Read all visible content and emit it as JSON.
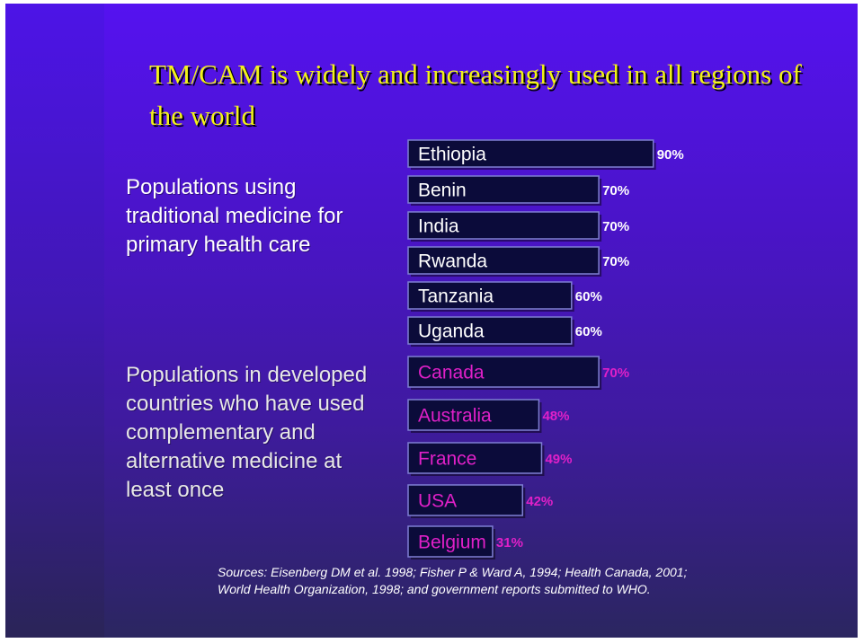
{
  "title": "TM/CAM is widely and increasingly used in all regions of the world",
  "groups": {
    "traditional_label": "Populations using traditional medicine for primary health care",
    "developed_label": "Populations in developed countries who have used complementary and alternative medicine at least once"
  },
  "chart_data": {
    "type": "bar",
    "orientation": "horizontal",
    "title": "TM/CAM is widely and increasingly used in all regions of the world",
    "xlim": [
      0,
      100
    ],
    "unit": "%",
    "groups": [
      {
        "name": "Populations using traditional medicine for primary health care",
        "categories": [
          "Ethiopia",
          "Benin",
          "India",
          "Rwanda",
          "Tanzania",
          "Uganda"
        ],
        "values": [
          90,
          70,
          70,
          70,
          60,
          60
        ],
        "value_labels": [
          "90%",
          "70%",
          "70%",
          "70%",
          "60%",
          "60%"
        ]
      },
      {
        "name": "Populations in developed countries who have used complementary and alternative medicine at least once",
        "categories": [
          "Canada",
          "Australia",
          "France",
          "USA",
          "Belgium"
        ],
        "values": [
          70,
          48,
          49,
          42,
          31
        ],
        "value_labels": [
          "70%",
          "48%",
          "49%",
          "42%",
          "31%"
        ]
      }
    ],
    "colors": {
      "bar_fill": "#0b0b3a",
      "bar_edge": "#7f7fd4",
      "label_group1": "#ffffff",
      "label_group2": "#e020c8"
    }
  },
  "sources": {
    "line1": "Sources: Eisenberg DM et al. 1998; Fisher P & Ward A, 1994; Health Canada, 2001;",
    "line2": "World Health Organization, 1998; and government reports submitted to WHO."
  }
}
